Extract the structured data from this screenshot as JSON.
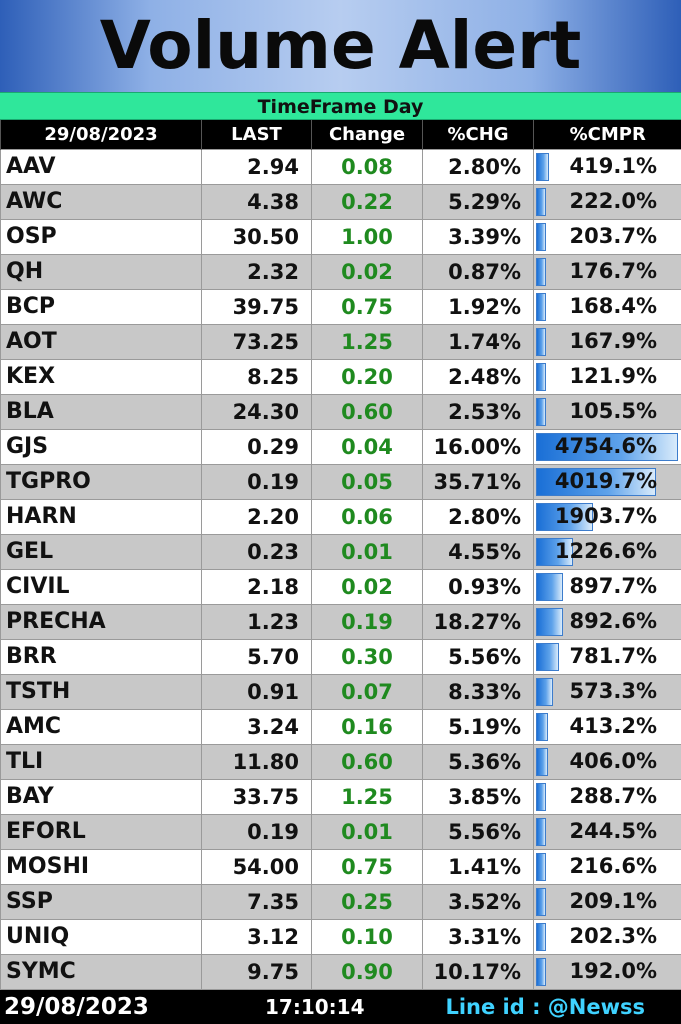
{
  "title": "Volume Alert",
  "timeframe": "TimeFrame  Day",
  "columns": [
    "29/08/2023",
    "LAST",
    "Change",
    "%CHG",
    "%CMPR"
  ],
  "rows": [
    {
      "symbol": "AAV",
      "last": "2.94",
      "change": "0.08",
      "pct_chg": "2.80%",
      "cmpr": "419.1%",
      "cmpr_value": 419.1
    },
    {
      "symbol": "AWC",
      "last": "4.38",
      "change": "0.22",
      "pct_chg": "5.29%",
      "cmpr": "222.0%",
      "cmpr_value": 222.0
    },
    {
      "symbol": "OSP",
      "last": "30.50",
      "change": "1.00",
      "pct_chg": "3.39%",
      "cmpr": "203.7%",
      "cmpr_value": 203.7
    },
    {
      "symbol": "QH",
      "last": "2.32",
      "change": "0.02",
      "pct_chg": "0.87%",
      "cmpr": "176.7%",
      "cmpr_value": 176.7
    },
    {
      "symbol": "BCP",
      "last": "39.75",
      "change": "0.75",
      "pct_chg": "1.92%",
      "cmpr": "168.4%",
      "cmpr_value": 168.4
    },
    {
      "symbol": "AOT",
      "last": "73.25",
      "change": "1.25",
      "pct_chg": "1.74%",
      "cmpr": "167.9%",
      "cmpr_value": 167.9
    },
    {
      "symbol": "KEX",
      "last": "8.25",
      "change": "0.20",
      "pct_chg": "2.48%",
      "cmpr": "121.9%",
      "cmpr_value": 121.9
    },
    {
      "symbol": "BLA",
      "last": "24.30",
      "change": "0.60",
      "pct_chg": "2.53%",
      "cmpr": "105.5%",
      "cmpr_value": 105.5
    },
    {
      "symbol": "GJS",
      "last": "0.29",
      "change": "0.04",
      "pct_chg": "16.00%",
      "cmpr": "4754.6%",
      "cmpr_value": 4754.6
    },
    {
      "symbol": "TGPRO",
      "last": "0.19",
      "change": "0.05",
      "pct_chg": "35.71%",
      "cmpr": "4019.7%",
      "cmpr_value": 4019.7
    },
    {
      "symbol": "HARN",
      "last": "2.20",
      "change": "0.06",
      "pct_chg": "2.80%",
      "cmpr": "1903.7%",
      "cmpr_value": 1903.7
    },
    {
      "symbol": "GEL",
      "last": "0.23",
      "change": "0.01",
      "pct_chg": "4.55%",
      "cmpr": "1226.6%",
      "cmpr_value": 1226.6
    },
    {
      "symbol": "CIVIL",
      "last": "2.18",
      "change": "0.02",
      "pct_chg": "0.93%",
      "cmpr": "897.7%",
      "cmpr_value": 897.7
    },
    {
      "symbol": "PRECHA",
      "last": "1.23",
      "change": "0.19",
      "pct_chg": "18.27%",
      "cmpr": "892.6%",
      "cmpr_value": 892.6
    },
    {
      "symbol": "BRR",
      "last": "5.70",
      "change": "0.30",
      "pct_chg": "5.56%",
      "cmpr": "781.7%",
      "cmpr_value": 781.7
    },
    {
      "symbol": "TSTH",
      "last": "0.91",
      "change": "0.07",
      "pct_chg": "8.33%",
      "cmpr": "573.3%",
      "cmpr_value": 573.3
    },
    {
      "symbol": "AMC",
      "last": "3.24",
      "change": "0.16",
      "pct_chg": "5.19%",
      "cmpr": "413.2%",
      "cmpr_value": 413.2
    },
    {
      "symbol": "TLI",
      "last": "11.80",
      "change": "0.60",
      "pct_chg": "5.36%",
      "cmpr": "406.0%",
      "cmpr_value": 406.0
    },
    {
      "symbol": "BAY",
      "last": "33.75",
      "change": "1.25",
      "pct_chg": "3.85%",
      "cmpr": "288.7%",
      "cmpr_value": 288.7
    },
    {
      "symbol": "EFORL",
      "last": "0.19",
      "change": "0.01",
      "pct_chg": "5.56%",
      "cmpr": "244.5%",
      "cmpr_value": 244.5
    },
    {
      "symbol": "MOSHI",
      "last": "54.00",
      "change": "0.75",
      "pct_chg": "1.41%",
      "cmpr": "216.6%",
      "cmpr_value": 216.6
    },
    {
      "symbol": "SSP",
      "last": "7.35",
      "change": "0.25",
      "pct_chg": "3.52%",
      "cmpr": "209.1%",
      "cmpr_value": 209.1
    },
    {
      "symbol": "UNIQ",
      "last": "3.12",
      "change": "0.10",
      "pct_chg": "3.31%",
      "cmpr": "202.3%",
      "cmpr_value": 202.3
    },
    {
      "symbol": "SYMC",
      "last": "9.75",
      "change": "0.90",
      "pct_chg": "10.17%",
      "cmpr": "192.0%",
      "cmpr_value": 192.0
    }
  ],
  "footer": {
    "date": "29/08/2023",
    "time": "17:10:14",
    "line_id": "Line id : @Newss"
  },
  "colors": {
    "timeframe_bg": "#2fe79b",
    "change_text": "#1f8a1f",
    "bar": "#1a6fd6",
    "footer_line_text": "#3fd2ff"
  }
}
